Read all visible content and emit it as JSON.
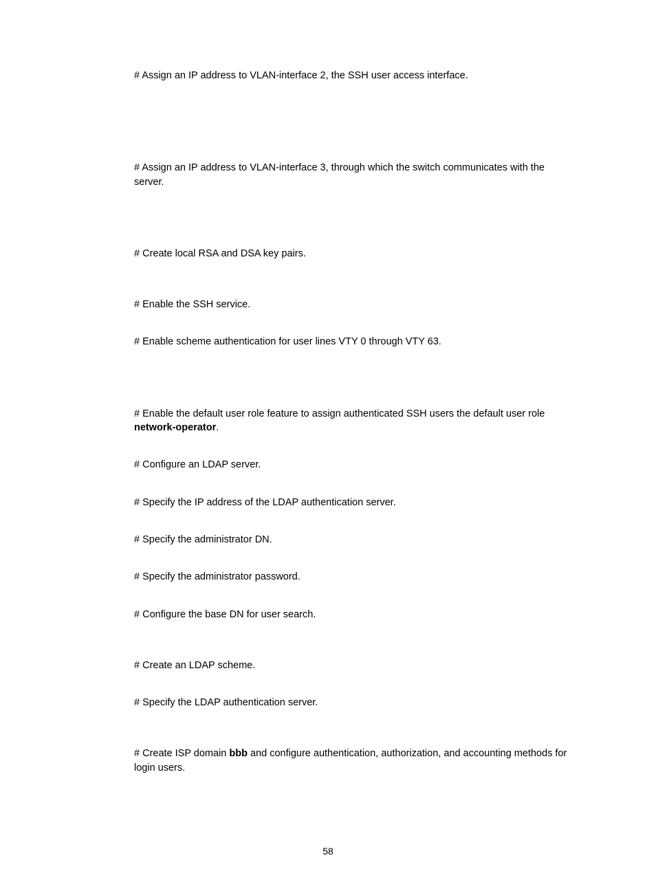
{
  "lines": [
    {
      "gapTop": 0,
      "segments": [
        {
          "text": "# Assign an IP address to VLAN-interface 2, the SSH user access interface."
        }
      ]
    },
    {
      "gapTop": 114,
      "segments": [
        {
          "text": "# Assign an IP address to VLAN-interface 3, through which the switch communicates with the server."
        }
      ]
    },
    {
      "gapTop": 84,
      "segments": [
        {
          "text": "# Create local RSA and DSA key pairs."
        }
      ]
    },
    {
      "gapTop": 54,
      "segments": [
        {
          "text": "# Enable the SSH service."
        }
      ]
    },
    {
      "gapTop": 34,
      "segments": [
        {
          "text": "# Enable scheme authentication for user lines VTY 0 through VTY 63."
        }
      ]
    },
    {
      "gapTop": 84,
      "segments": [
        {
          "text": "# Enable the default user role feature to assign authenticated SSH users the default user role "
        },
        {
          "text": "network-operator",
          "bold": true
        },
        {
          "text": "."
        }
      ]
    },
    {
      "gapTop": 34,
      "segments": [
        {
          "text": "# Configure an LDAP server."
        }
      ]
    },
    {
      "gapTop": 34,
      "segments": [
        {
          "text": "# Specify the IP address of the LDAP authentication server."
        }
      ]
    },
    {
      "gapTop": 34,
      "segments": [
        {
          "text": "# Specify the administrator DN."
        }
      ]
    },
    {
      "gapTop": 34,
      "segments": [
        {
          "text": "# Specify the administrator password."
        }
      ]
    },
    {
      "gapTop": 34,
      "segments": [
        {
          "text": "# Configure the base DN for user search."
        }
      ]
    },
    {
      "gapTop": 54,
      "segments": [
        {
          "text": "# Create an LDAP scheme."
        }
      ]
    },
    {
      "gapTop": 34,
      "segments": [
        {
          "text": "# Specify the LDAP authentication server."
        }
      ]
    },
    {
      "gapTop": 54,
      "segments": [
        {
          "text": "# Create ISP domain "
        },
        {
          "text": "bbb",
          "bold": true
        },
        {
          "text": " and configure authentication, authorization, and accounting methods for login users."
        }
      ]
    }
  ],
  "pageNumber": "58",
  "colors": {
    "text": "#000000",
    "background": "#ffffff"
  },
  "typography": {
    "bodyFontSize": 14.5,
    "pageNumFontSize": 14,
    "fontFamily": "Arial"
  }
}
